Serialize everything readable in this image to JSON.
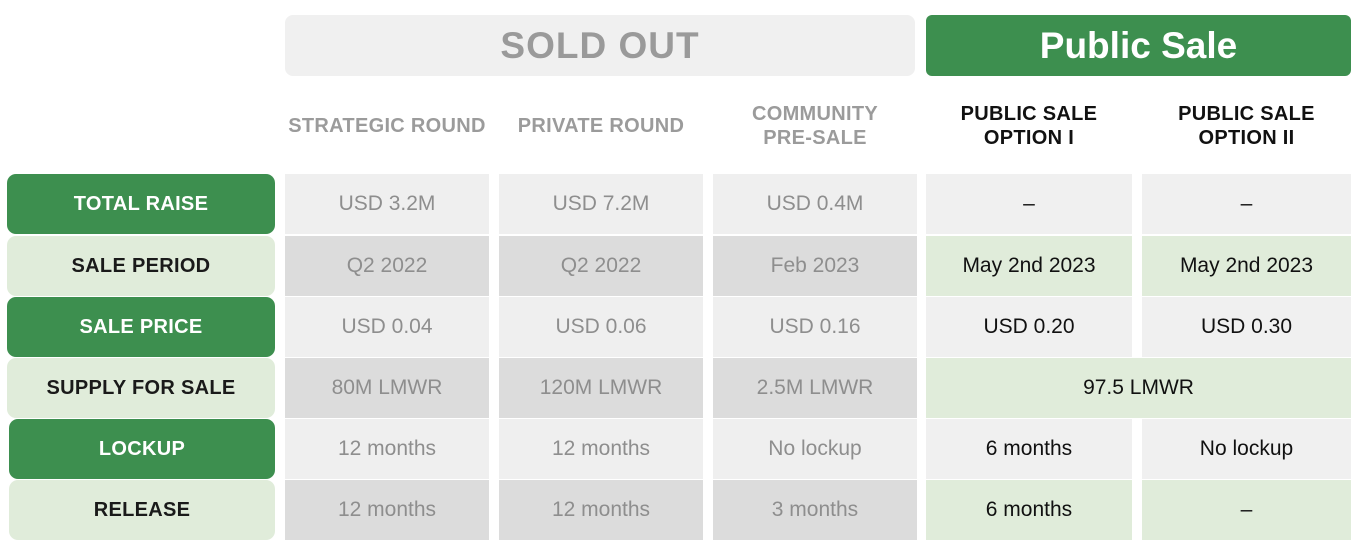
{
  "banners": {
    "sold_out": "SOLD OUT",
    "public_sale": "Public Sale"
  },
  "columns": [
    [
      "STRATEGIC ROUND"
    ],
    [
      "PRIVATE ROUND"
    ],
    [
      "COMMUNITY",
      "PRE-SALE"
    ],
    [
      "PUBLIC SALE",
      "OPTION I"
    ],
    [
      "PUBLIC SALE",
      "OPTION II"
    ]
  ],
  "rows": [
    {
      "label": "TOTAL RAISE",
      "values": [
        "USD 3.2M",
        "USD 7.2M",
        "USD 0.4M",
        "–",
        "–"
      ]
    },
    {
      "label": "SALE PERIOD",
      "values": [
        "Q2 2022",
        "Q2 2022",
        "Feb 2023",
        "May 2nd 2023",
        "May 2nd 2023"
      ]
    },
    {
      "label": "SALE PRICE",
      "values": [
        "USD 0.04",
        "USD 0.06",
        "USD 0.16",
        "USD 0.20",
        "USD 0.30"
      ]
    },
    {
      "label": "SUPPLY FOR SALE",
      "values": [
        "80M LMWR",
        "120M LMWR",
        "2.5M LMWR",
        "97.5 LMWR"
      ]
    },
    {
      "label": "LOCKUP",
      "values": [
        "12 months",
        "12 months",
        "No lockup",
        "6 months",
        "No lockup"
      ]
    },
    {
      "label": "RELEASE",
      "values": [
        "12 months",
        "12 months",
        "3 months",
        "6 months",
        "–"
      ]
    }
  ]
}
